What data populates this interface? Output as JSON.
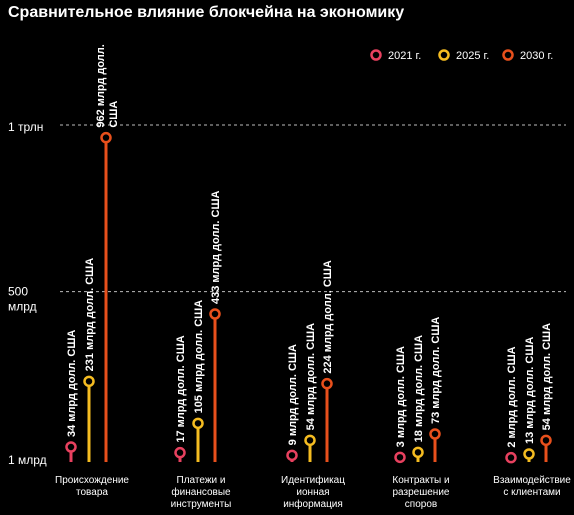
{
  "chart_data": {
    "type": "lollipop",
    "title": "Сравнительное влияние блокчейна на экономику",
    "y_ticks": [
      {
        "label": "1 трлн",
        "value": 1000
      },
      {
        "label": "500 млрд",
        "value": 500
      },
      {
        "label": "1 млрд",
        "value": 1
      }
    ],
    "ylim": [
      1,
      1000
    ],
    "grid": true,
    "legend_position": "top-right",
    "series": [
      {
        "name": "2021 г.",
        "color": "#e8415f"
      },
      {
        "name": "2025 г.",
        "color": "#f5bc21"
      },
      {
        "name": "2030 г.",
        "color": "#e8501c"
      }
    ],
    "categories": [
      {
        "label": [
          "Происхождение",
          "товара"
        ],
        "values": [
          34,
          231,
          962
        ],
        "labels": [
          [
            "34 млрд долл. США"
          ],
          [
            "231 млрд долл. США"
          ],
          [
            "962 млрд долл.",
            "США"
          ]
        ]
      },
      {
        "label": [
          "Платежи и",
          "финансовые",
          "инструменты"
        ],
        "values": [
          17,
          105,
          433
        ],
        "labels": [
          [
            "17 млрд долл. США"
          ],
          [
            "105 млрд долл. США"
          ],
          [
            "433 млрд долл. США"
          ]
        ]
      },
      {
        "label": [
          "Идентификац",
          "ионная",
          "информация"
        ],
        "values": [
          9,
          54,
          224
        ],
        "labels": [
          [
            "9 млрд долл. США"
          ],
          [
            "54 млрд долл. США"
          ],
          [
            "224 млрд долл. США"
          ]
        ]
      },
      {
        "label": [
          "Контракты и",
          "разрешение",
          "споров"
        ],
        "values": [
          3,
          18,
          73
        ],
        "labels": [
          [
            "3 млрд долл. США"
          ],
          [
            "18 млрд долл. США"
          ],
          [
            "73 млрд долл. США"
          ]
        ]
      },
      {
        "label": [
          "Взаимодействие",
          "с клиентами"
        ],
        "values": [
          2,
          13,
          54
        ],
        "labels": [
          [
            "2 млрд долл. США"
          ],
          [
            "13 млрд долл. США"
          ],
          [
            "54 млрд долл. США"
          ]
        ]
      }
    ]
  }
}
